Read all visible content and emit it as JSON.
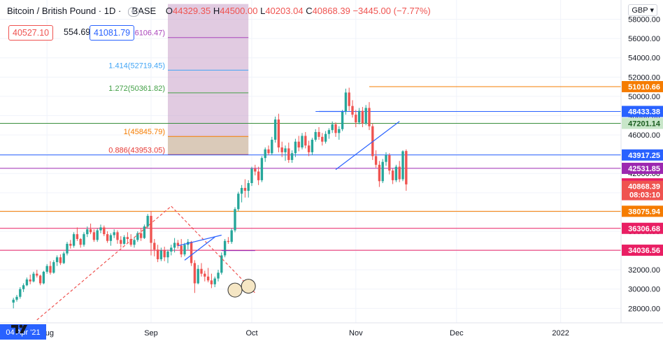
{
  "header": {
    "symbol": "Bitcoin / British Pound · 1D ·",
    "exchange": "BASE",
    "ohlc": {
      "o_label": "O",
      "o": "44329.35",
      "h_label": "H",
      "h": "44500.00",
      "l_label": "L",
      "l": "40203.04",
      "c_label": "C",
      "c": "40868.39",
      "change": "−3445.00 (−7.77%)"
    }
  },
  "quotes": {
    "sell": "40527.10",
    "spread": "554.69",
    "buy": "41081.79"
  },
  "currency_button": "GBP",
  "colors": {
    "up": "#26a69a",
    "down": "#ef5350",
    "fib_box": "#c8a0c8"
  },
  "chart_data": {
    "type": "candlestick",
    "ylim": [
      26500,
      60000
    ],
    "y_ticks": [
      28000,
      30000,
      32000,
      34000,
      36000,
      38000,
      40000,
      42000,
      44000,
      46000,
      48000,
      50000,
      52000,
      54000,
      56000,
      58000
    ],
    "y_tick_labels": [
      "28000.00",
      "30000.00",
      "32000.00",
      "34000.00",
      "36000.00",
      "38000.00",
      "40000.00",
      "42000.00",
      "44000.00",
      "46000.00",
      "48000.00",
      "50000.00",
      "52000.00",
      "54000.00",
      "56000.00",
      "58000.00"
    ],
    "x_start": "2021-07-18",
    "x_end": "2022-01-19",
    "x_labels": [
      {
        "date": "2021-08-01",
        "label": "Aug"
      },
      {
        "date": "2021-09-01",
        "label": "Sep"
      },
      {
        "date": "2021-10-01",
        "label": "Oct"
      },
      {
        "date": "2021-11-01",
        "label": "Nov"
      },
      {
        "date": "2021-12-01",
        "label": "Dec"
      },
      {
        "date": "2022-01-01",
        "label": "2022"
      }
    ],
    "x_cursor_label": {
      "date": "2021-07-18",
      "label": "04 Apr '21"
    },
    "candles_start": "2021-07-22",
    "candles": [
      [
        28600,
        29100,
        28000,
        28900
      ],
      [
        28900,
        29400,
        28700,
        29200
      ],
      [
        29200,
        30200,
        29000,
        30000
      ],
      [
        30000,
        30600,
        29700,
        30400
      ],
      [
        30400,
        31200,
        30300,
        31000
      ],
      [
        31000,
        31500,
        30500,
        30800
      ],
      [
        30800,
        31800,
        30700,
        31600
      ],
      [
        31600,
        32000,
        31200,
        31400
      ],
      [
        31400,
        31500,
        30400,
        30600
      ],
      [
        30600,
        31900,
        30500,
        31800
      ],
      [
        31800,
        32600,
        31600,
        32400
      ],
      [
        32400,
        32900,
        31500,
        31700
      ],
      [
        31700,
        33000,
        31600,
        32800
      ],
      [
        32800,
        33500,
        32400,
        33300
      ],
      [
        33300,
        33600,
        32500,
        32700
      ],
      [
        32700,
        33900,
        32600,
        33700
      ],
      [
        33700,
        34900,
        33500,
        34700
      ],
      [
        34700,
        35100,
        34200,
        34500
      ],
      [
        34500,
        35900,
        34300,
        35700
      ],
      [
        35700,
        36400,
        35000,
        35200
      ],
      [
        35200,
        35300,
        34300,
        34600
      ],
      [
        34600,
        35900,
        34400,
        35700
      ],
      [
        35700,
        36500,
        35400,
        36200
      ],
      [
        36200,
        36800,
        35700,
        35900
      ],
      [
        35900,
        36200,
        34900,
        35100
      ],
      [
        35100,
        36300,
        34900,
        36100
      ],
      [
        36100,
        36700,
        35800,
        36400
      ],
      [
        36400,
        36600,
        35500,
        35700
      ],
      [
        35700,
        36000,
        34800,
        35000
      ],
      [
        35000,
        35800,
        34500,
        35600
      ],
      [
        35600,
        36200,
        35300,
        35900
      ],
      [
        35900,
        36100,
        34700,
        35100
      ],
      [
        35100,
        35500,
        34300,
        34700
      ],
      [
        34700,
        35600,
        34600,
        35400
      ],
      [
        35400,
        35900,
        34800,
        35200
      ],
      [
        35200,
        35700,
        34400,
        34600
      ],
      [
        34600,
        35400,
        34300,
        35100
      ],
      [
        35100,
        36000,
        34900,
        35800
      ],
      [
        35800,
        36300,
        35000,
        35300
      ],
      [
        35300,
        36700,
        35200,
        36500
      ],
      [
        36500,
        37800,
        36300,
        37600
      ],
      [
        37600,
        38100,
        33500,
        34800
      ],
      [
        34800,
        35200,
        33400,
        34100
      ],
      [
        34100,
        34600,
        32800,
        33100
      ],
      [
        33100,
        34300,
        32900,
        34000
      ],
      [
        34000,
        34400,
        32900,
        33300
      ],
      [
        33300,
        34100,
        32700,
        33900
      ],
      [
        33900,
        34600,
        33500,
        34300
      ],
      [
        34300,
        35300,
        33800,
        34800
      ],
      [
        34800,
        35100,
        34200,
        34500
      ],
      [
        34500,
        35200,
        33300,
        33600
      ],
      [
        33600,
        34800,
        33400,
        34600
      ],
      [
        34600,
        35200,
        34100,
        34900
      ],
      [
        34900,
        35000,
        32400,
        32700
      ],
      [
        32700,
        33000,
        29600,
        30600
      ],
      [
        30600,
        32500,
        30500,
        32100
      ],
      [
        32100,
        32700,
        31300,
        31600
      ],
      [
        31600,
        31900,
        30800,
        31300
      ],
      [
        31300,
        32200,
        30700,
        30900
      ],
      [
        30900,
        31600,
        30100,
        30500
      ],
      [
        30500,
        31300,
        30200,
        31100
      ],
      [
        31100,
        32000,
        30800,
        31700
      ],
      [
        31700,
        33800,
        31500,
        33500
      ],
      [
        33500,
        35200,
        33300,
        35000
      ],
      [
        35000,
        35400,
        34700,
        34900
      ],
      [
        34900,
        36300,
        34700,
        36100
      ],
      [
        36100,
        38500,
        35900,
        38300
      ],
      [
        38300,
        40100,
        38100,
        39900
      ],
      [
        39900,
        40800,
        39000,
        40500
      ],
      [
        40500,
        41400,
        39500,
        40200
      ],
      [
        40200,
        41300,
        39500,
        41000
      ],
      [
        41000,
        42700,
        40700,
        42500
      ],
      [
        42500,
        42900,
        41800,
        42200
      ],
      [
        42200,
        42700,
        40800,
        41300
      ],
      [
        41300,
        43800,
        41100,
        43600
      ],
      [
        43600,
        44700,
        43200,
        44500
      ],
      [
        44500,
        44900,
        43900,
        44100
      ],
      [
        44100,
        45800,
        43900,
        45500
      ],
      [
        45500,
        47900,
        45200,
        47600
      ],
      [
        47600,
        48200,
        44200,
        44700
      ],
      [
        44700,
        45300,
        43700,
        44200
      ],
      [
        44200,
        44900,
        43300,
        44600
      ],
      [
        44600,
        45200,
        43100,
        43400
      ],
      [
        43400,
        44400,
        43100,
        44100
      ],
      [
        44100,
        45600,
        43700,
        45300
      ],
      [
        45300,
        45900,
        44300,
        44700
      ],
      [
        44700,
        46200,
        44500,
        45900
      ],
      [
        45900,
        46300,
        44600,
        44900
      ],
      [
        44900,
        45400,
        43800,
        44200
      ],
      [
        44200,
        45700,
        43900,
        45500
      ],
      [
        45500,
        46600,
        45300,
        46300
      ],
      [
        46300,
        46800,
        45500,
        45800
      ],
      [
        45800,
        46200,
        44900,
        45300
      ],
      [
        45300,
        46400,
        45100,
        46100
      ],
      [
        46100,
        46700,
        45600,
        46500
      ],
      [
        46500,
        47400,
        46200,
        47100
      ],
      [
        47100,
        47300,
        45800,
        46200
      ],
      [
        46200,
        46900,
        45500,
        46600
      ],
      [
        46600,
        48600,
        46400,
        48400
      ],
      [
        48400,
        50800,
        48100,
        50400
      ],
      [
        50400,
        50900,
        48500,
        49000
      ],
      [
        49000,
        49600,
        47800,
        48100
      ],
      [
        48100,
        48600,
        46800,
        47300
      ],
      [
        47300,
        48800,
        47100,
        48500
      ],
      [
        48500,
        48900,
        46800,
        47200
      ],
      [
        47200,
        49100,
        47000,
        48800
      ],
      [
        48800,
        49400,
        46500,
        46900
      ],
      [
        46900,
        47200,
        43400,
        43800
      ],
      [
        43800,
        44400,
        42600,
        42900
      ],
      [
        42900,
        43300,
        40600,
        41200
      ],
      [
        41200,
        43500,
        41000,
        43200
      ],
      [
        43200,
        44200,
        42800,
        43900
      ],
      [
        43900,
        44100,
        41900,
        42300
      ],
      [
        42300,
        42500,
        40900,
        41300
      ],
      [
        41300,
        42900,
        41100,
        42700
      ],
      [
        42700,
        43300,
        41100,
        41400
      ],
      [
        41400,
        44400,
        41200,
        44300
      ],
      [
        44330,
        44500,
        40203,
        40868
      ]
    ],
    "horizontal_lines": [
      {
        "value": 51010.66,
        "label": "51010.66",
        "color": "#f57c00",
        "start": "2021-11-05"
      },
      {
        "value": 48433.38,
        "label": "48433.38",
        "color": "#2962ff",
        "start": "2021-10-20"
      },
      {
        "value": 47201.14,
        "label": "47201.14",
        "color": "#388e3c",
        "start": null
      },
      {
        "value": 43917.25,
        "label": "43917.25",
        "color": "#2962ff",
        "start": null
      },
      {
        "value": 42531.85,
        "label": "42531.85",
        "color": "#9c27b0",
        "start": null
      },
      {
        "value": 38075.94,
        "label": "38075.94",
        "color": "#f57c00",
        "start": null
      },
      {
        "value": 36306.68,
        "label": "36306.68",
        "color": "#e91e63",
        "start": null
      },
      {
        "value": 34036.56,
        "label": "34036.56",
        "color": "#e91e63",
        "start": null
      }
    ],
    "price_badges": [
      {
        "value": 40920.67,
        "label": "40920.67",
        "color": "#e91e63"
      },
      {
        "value": 40868.39,
        "label": "40868.39",
        "color": "#ef5350"
      },
      {
        "value": 39900,
        "label": "08:03:10",
        "color": "#ef5350"
      }
    ],
    "fib": {
      "start": "2021-09-06",
      "end": "2021-09-30",
      "levels": [
        {
          "ratio": "0.886",
          "value": 43953.05,
          "label": "0.886(43953.05)",
          "color": "#e53935"
        },
        {
          "ratio": "1",
          "value": 45845.79,
          "label": "1(45845.79)",
          "color": "#f57c00"
        },
        {
          "ratio": "1.272",
          "value": 50361.82,
          "label": "1.272(50361.82)",
          "color": "#43a047"
        },
        {
          "ratio": "1.414",
          "value": 52719.45,
          "label": "1.414(52719.45)",
          "color": "#42a5f5"
        },
        {
          "ratio": "1.618",
          "value": 56106.47,
          "label": "1.618(56106.47)",
          "color": "#ab47bc"
        }
      ]
    },
    "trendlines": [
      {
        "points": [
          [
            "2021-07-29",
            26800
          ],
          [
            "2021-09-07",
            38600
          ]
        ],
        "color": "#ef5350",
        "dashed": true
      },
      {
        "points": [
          [
            "2021-09-07",
            38600
          ],
          [
            "2021-10-02",
            29600
          ]
        ],
        "color": "#ef5350",
        "dashed": true
      },
      {
        "points": [
          [
            "2021-09-09",
            34500
          ],
          [
            "2021-09-22",
            35600
          ]
        ],
        "color": "#2962ff",
        "dashed": false
      },
      {
        "points": [
          [
            "2021-09-11",
            33000
          ],
          [
            "2021-09-20",
            35400
          ]
        ],
        "color": "#2962ff",
        "dashed": false
      },
      {
        "points": [
          [
            "2021-10-26",
            42400
          ],
          [
            "2021-11-14",
            47400
          ]
        ],
        "color": "#2962ff",
        "dashed": false
      },
      {
        "points": [
          [
            "2021-09-22",
            34000
          ],
          [
            "2021-10-02",
            34000
          ]
        ],
        "color": "#9c27b0",
        "dashed": false
      },
      {
        "points": [
          [
            "2021-10-21",
            48433.38
          ],
          [
            "2021-10-29",
            48433.38
          ]
        ],
        "color": "#2962ff",
        "dashed": false
      }
    ],
    "circles": [
      {
        "date": "2021-09-26",
        "value": 29900
      },
      {
        "date": "2021-09-30",
        "value": 30300
      }
    ]
  }
}
